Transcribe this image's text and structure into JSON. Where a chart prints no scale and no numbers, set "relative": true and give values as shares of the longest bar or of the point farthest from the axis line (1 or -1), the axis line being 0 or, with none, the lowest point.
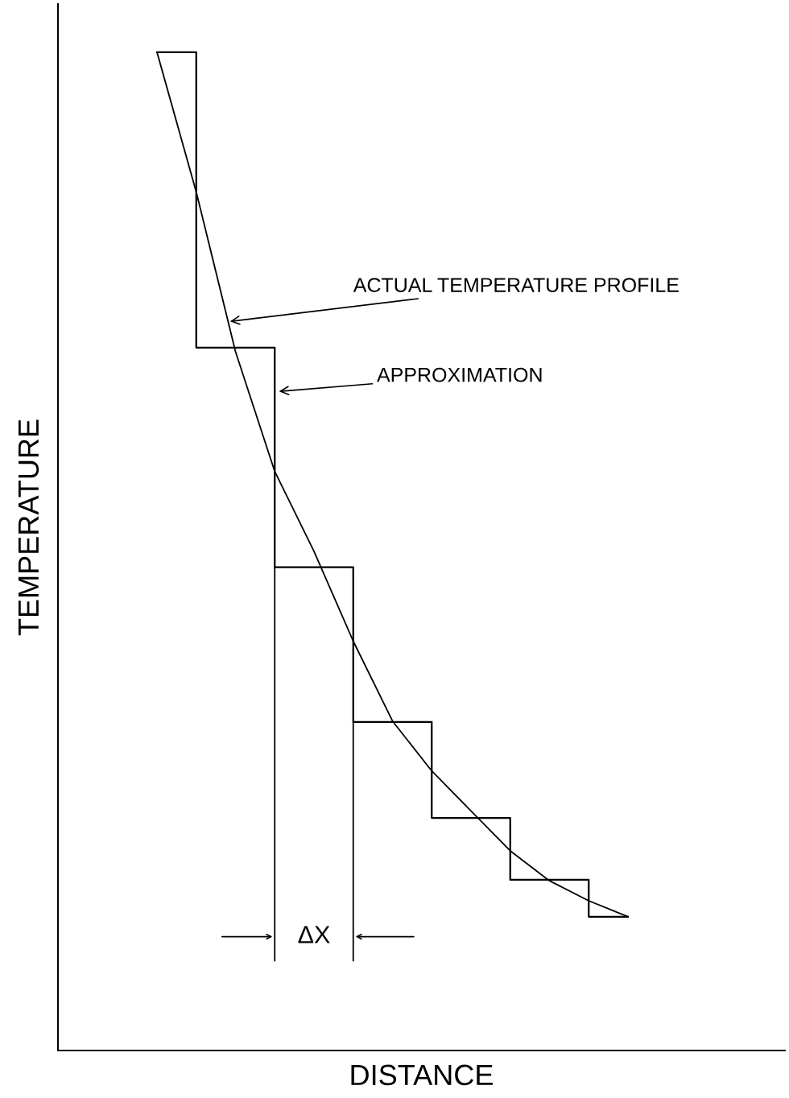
{
  "chart_data": {
    "type": "line",
    "relative": true,
    "xlabel": "DISTANCE",
    "ylabel": "TEMPERATURE",
    "tick_labels": false,
    "legend": false,
    "marker": "none",
    "line_style": "solid",
    "categories": [
      null,
      null,
      null,
      null,
      null,
      null,
      null,
      null,
      null,
      null,
      null,
      null,
      null
    ],
    "series": [
      {
        "color": "#000000",
        "values": [
          1.0,
          0.86,
          0.7,
          0.58,
          0.5,
          0.41,
          0.33,
          0.28,
          0.24,
          0.2,
          0.17,
          0.15,
          0.134
        ]
      },
      {
        "type": "step",
        "color": "#000000",
        "values": [
          1.0,
          0.704,
          0.704,
          0.484,
          0.484,
          0.329,
          0.329,
          0.233,
          0.233,
          0.171,
          0.171,
          0.134,
          0.134
        ]
      }
    ],
    "annotations": [
      "ACTUAL TEMPERATURE PROFILE",
      "APPROXIMATION",
      "ΔX"
    ]
  }
}
